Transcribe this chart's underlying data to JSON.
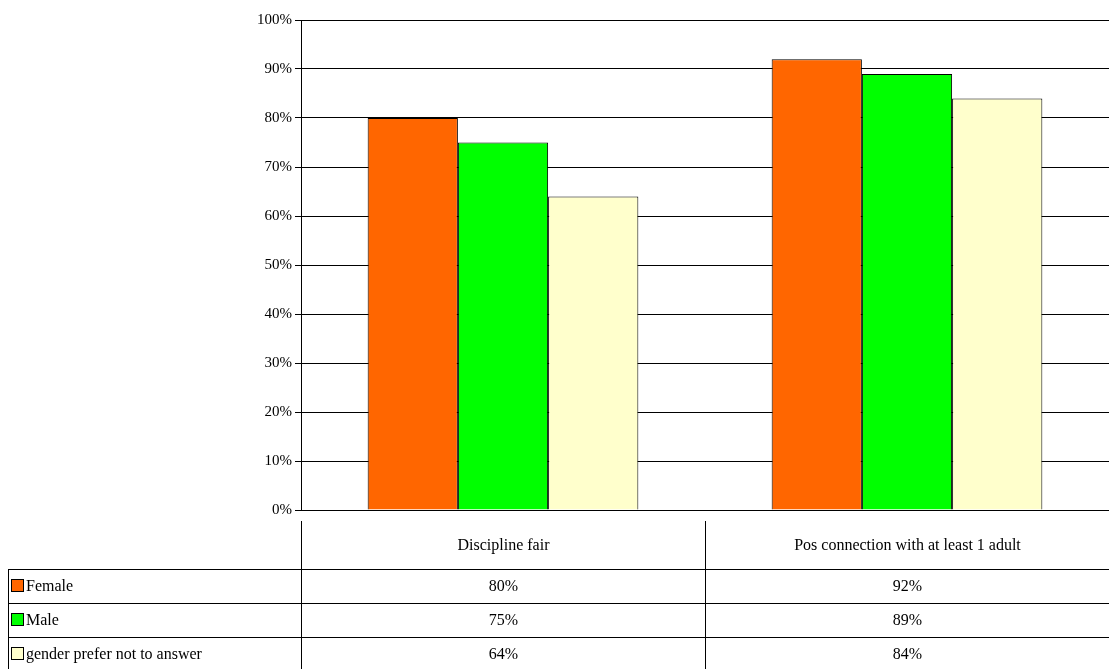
{
  "chart_data": {
    "type": "bar",
    "categories": [
      "Discipline fair",
      "Pos connection with at least 1 adult"
    ],
    "series": [
      {
        "name": "Female",
        "color": "#ff6600",
        "values": [
          80,
          92
        ],
        "value_labels": [
          "80%",
          "92%"
        ]
      },
      {
        "name": "Male",
        "color": "#00ff00",
        "values": [
          75,
          89
        ],
        "value_labels": [
          "75%",
          "89%"
        ]
      },
      {
        "name": "gender prefer not to answer",
        "color": "#ffffcc",
        "values": [
          64,
          84
        ],
        "value_labels": [
          "64%",
          "84%"
        ]
      }
    ],
    "ylim": [
      0,
      100
    ],
    "yticks": [
      {
        "value": 0,
        "label": "0%"
      },
      {
        "value": 10,
        "label": "10%"
      },
      {
        "value": 20,
        "label": "20%"
      },
      {
        "value": 30,
        "label": "30%"
      },
      {
        "value": 40,
        "label": "40%"
      },
      {
        "value": 50,
        "label": "50%"
      },
      {
        "value": 60,
        "label": "60%"
      },
      {
        "value": 70,
        "label": "70%"
      },
      {
        "value": 80,
        "label": "80%"
      },
      {
        "value": 90,
        "label": "90%"
      },
      {
        "value": 100,
        "label": "100%"
      }
    ],
    "grid": "y",
    "legend": "bottom left"
  }
}
